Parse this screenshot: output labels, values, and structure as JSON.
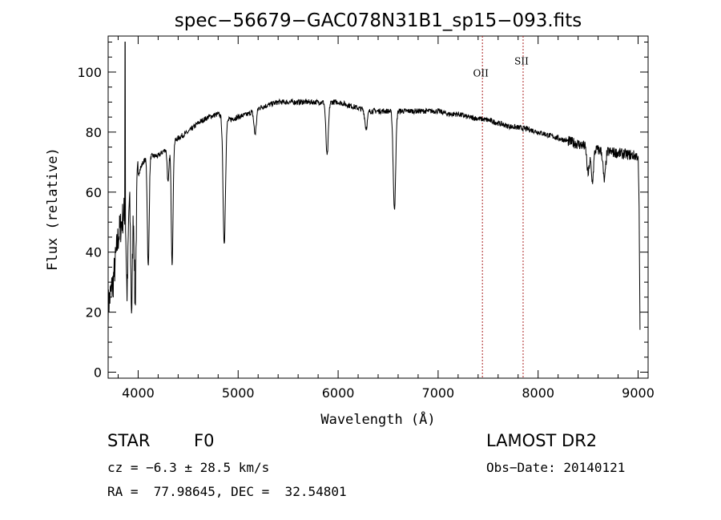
{
  "chart_data": {
    "type": "line",
    "title": "spec−56679−GAC078N31B1_sp15−093.fits",
    "xlabel": "Wavelength (Å)",
    "ylabel": "Flux (relative)",
    "xlim": [
      3700,
      9100
    ],
    "ylim": [
      -2,
      112
    ],
    "xticks": [
      4000,
      5000,
      6000,
      7000,
      8000,
      9000
    ],
    "yticks": [
      0,
      20,
      40,
      60,
      80,
      100
    ],
    "grid": false,
    "continuum": [
      [
        3700,
        22
      ],
      [
        3750,
        30
      ],
      [
        3800,
        45
      ],
      [
        3850,
        52
      ],
      [
        3900,
        58
      ],
      [
        3950,
        63
      ],
      [
        4000,
        66
      ],
      [
        4050,
        70
      ],
      [
        4100,
        72
      ],
      [
        4200,
        72
      ],
      [
        4300,
        75
      ],
      [
        4400,
        78
      ],
      [
        4500,
        80
      ],
      [
        4600,
        83
      ],
      [
        4700,
        85
      ],
      [
        4800,
        86
      ],
      [
        4900,
        84
      ],
      [
        5000,
        85
      ],
      [
        5100,
        86
      ],
      [
        5200,
        88
      ],
      [
        5300,
        89
      ],
      [
        5400,
        90
      ],
      [
        5500,
        90
      ],
      [
        5600,
        90
      ],
      [
        5700,
        90
      ],
      [
        5800,
        90
      ],
      [
        5900,
        90
      ],
      [
        6000,
        90
      ],
      [
        6100,
        89
      ],
      [
        6200,
        88
      ],
      [
        6300,
        87
      ],
      [
        6400,
        87
      ],
      [
        6500,
        87
      ],
      [
        6600,
        87
      ],
      [
        6700,
        87
      ],
      [
        6800,
        87
      ],
      [
        6900,
        87
      ],
      [
        7000,
        87
      ],
      [
        7100,
        86
      ],
      [
        7200,
        86
      ],
      [
        7300,
        85
      ],
      [
        7400,
        84.5
      ],
      [
        7500,
        84
      ],
      [
        7600,
        83
      ],
      [
        7700,
        82
      ],
      [
        7800,
        81.5
      ],
      [
        7900,
        81
      ],
      [
        8000,
        80
      ],
      [
        8100,
        79
      ],
      [
        8200,
        78
      ],
      [
        8300,
        77
      ],
      [
        8400,
        76
      ],
      [
        8500,
        75
      ],
      [
        8600,
        74
      ],
      [
        8700,
        73.5
      ],
      [
        8800,
        73
      ],
      [
        8900,
        72.5
      ],
      [
        9000,
        72
      ],
      [
        9010,
        55
      ],
      [
        9020,
        10
      ]
    ],
    "absorption_lines": [
      {
        "wavelength": 3890,
        "depth": 30
      },
      {
        "wavelength": 3935,
        "depth": 40
      },
      {
        "wavelength": 3970,
        "depth": 40
      },
      {
        "wavelength": 4101,
        "depth": 37
      },
      {
        "wavelength": 4300,
        "depth": 12
      },
      {
        "wavelength": 4340,
        "depth": 40
      },
      {
        "wavelength": 4861,
        "depth": 42
      },
      {
        "wavelength": 5170,
        "depth": 8
      },
      {
        "wavelength": 5890,
        "depth": 18
      },
      {
        "wavelength": 6280,
        "depth": 6
      },
      {
        "wavelength": 6563,
        "depth": 33
      },
      {
        "wavelength": 8500,
        "depth": 9
      },
      {
        "wavelength": 8542,
        "depth": 11
      },
      {
        "wavelength": 8662,
        "depth": 10
      }
    ],
    "emission_spike": {
      "wavelength": 3870,
      "peak": 110
    },
    "markers": [
      {
        "label": "OII",
        "wavelength": 7443,
        "label_y": 98.5
      },
      {
        "label": "SII",
        "wavelength": 7850,
        "label_y": 102.5
      }
    ],
    "line_color": "#000000",
    "marker_color": "#aa2222"
  },
  "info": {
    "object_class": "STAR",
    "subclass": "F0",
    "survey": "LAMOST DR2",
    "redshift_text": "cz = −6.3 ± 28.5 km/s",
    "obs_date_text": "Obs−Date: 20140121",
    "coords_text": "RA =  77.98645, DEC =  32.54801"
  }
}
